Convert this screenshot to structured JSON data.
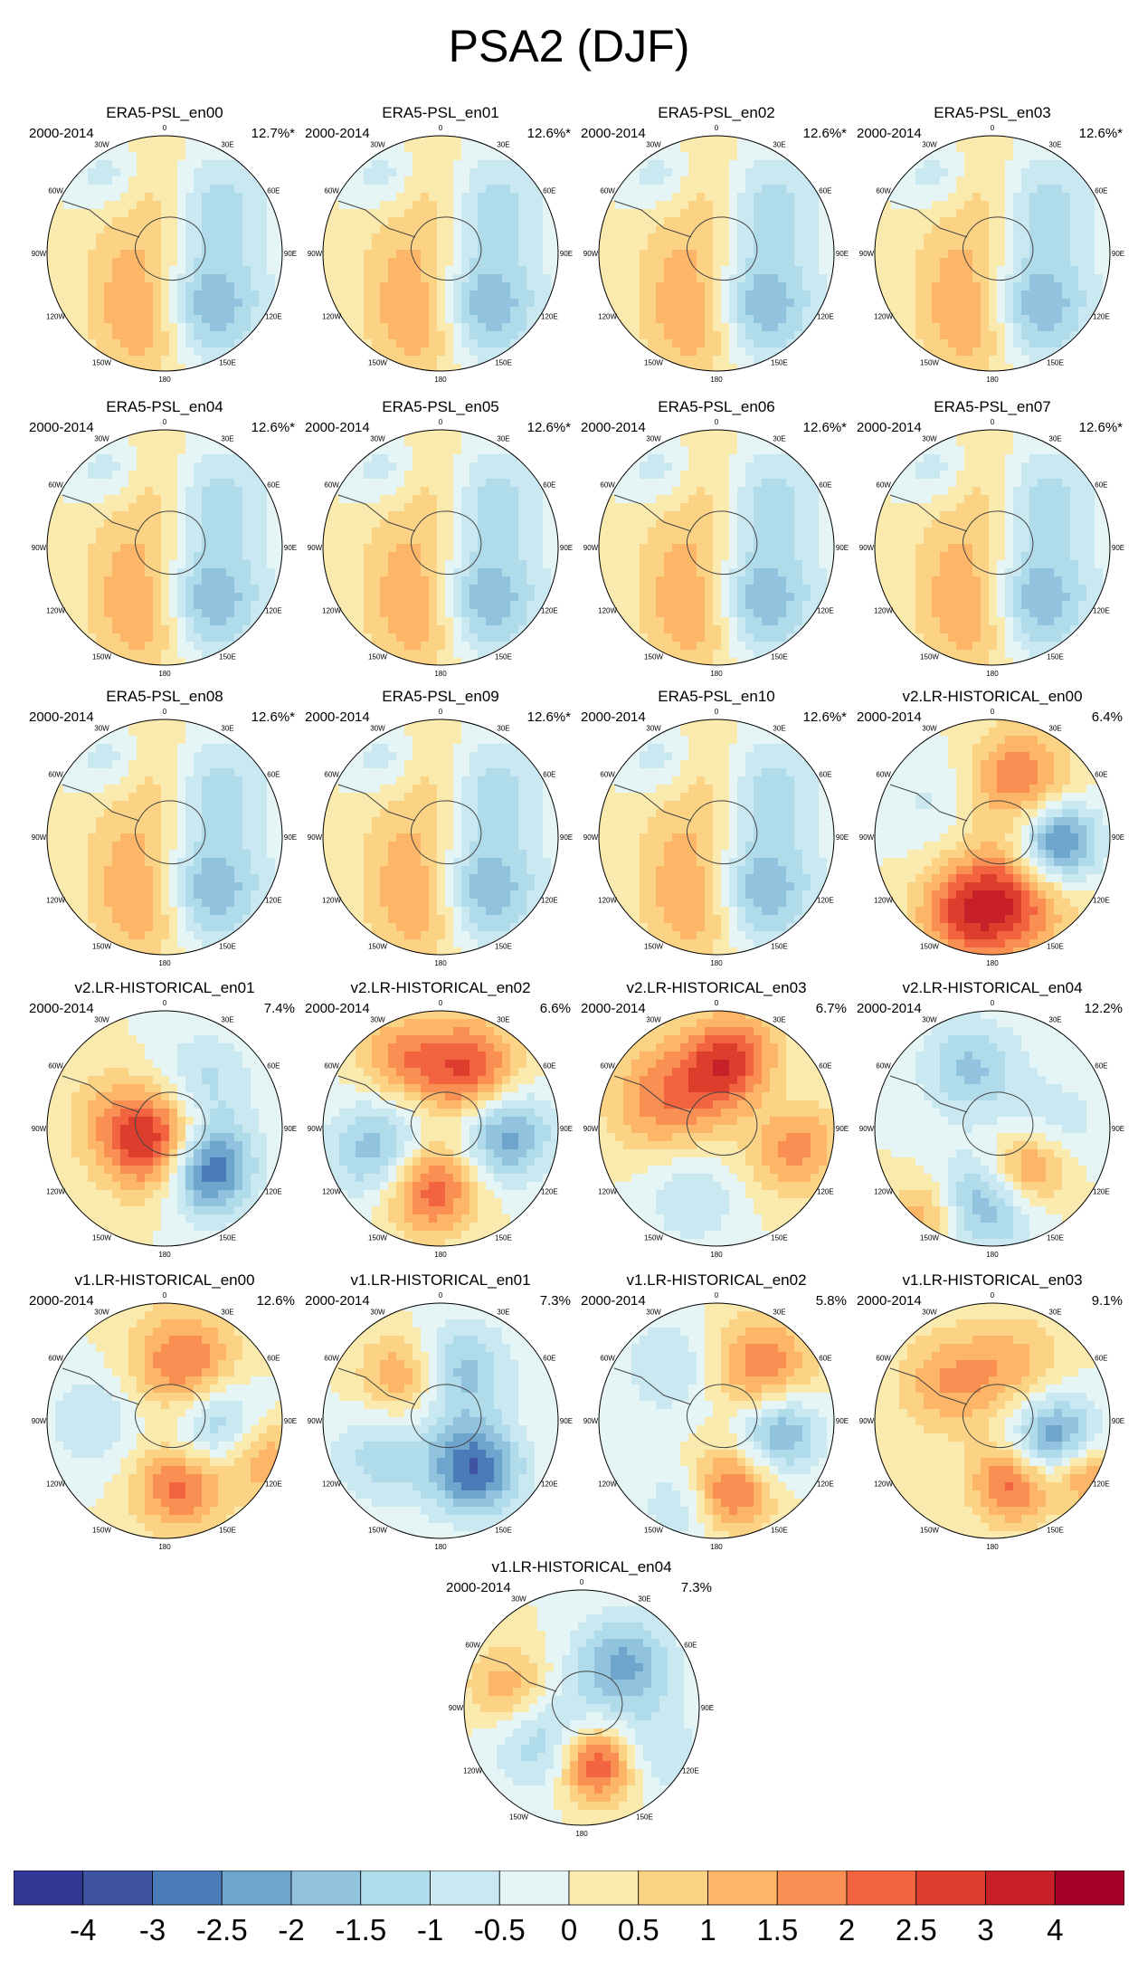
{
  "title": "PSA2 (DJF)",
  "period": "2000-2014",
  "lon_labels": [
    "0",
    "30E",
    "60E",
    "90E",
    "120E",
    "150E",
    "180",
    "150W",
    "120W",
    "90W",
    "60W",
    "30W"
  ],
  "panels": [
    {
      "name": "ERA5-PSL_en00",
      "pct": "12.7%*",
      "style": "era5"
    },
    {
      "name": "ERA5-PSL_en01",
      "pct": "12.6%*",
      "style": "era5"
    },
    {
      "name": "ERA5-PSL_en02",
      "pct": "12.6%*",
      "style": "era5"
    },
    {
      "name": "ERA5-PSL_en03",
      "pct": "12.6%*",
      "style": "era5"
    },
    {
      "name": "ERA5-PSL_en04",
      "pct": "12.6%*",
      "style": "era5"
    },
    {
      "name": "ERA5-PSL_en05",
      "pct": "12.6%*",
      "style": "era5"
    },
    {
      "name": "ERA5-PSL_en06",
      "pct": "12.6%*",
      "style": "era5"
    },
    {
      "name": "ERA5-PSL_en07",
      "pct": "12.6%*",
      "style": "era5"
    },
    {
      "name": "ERA5-PSL_en08",
      "pct": "12.6%*",
      "style": "era5"
    },
    {
      "name": "ERA5-PSL_en09",
      "pct": "12.6%*",
      "style": "era5"
    },
    {
      "name": "ERA5-PSL_en10",
      "pct": "12.6%*",
      "style": "era5"
    },
    {
      "name": "v2.LR-HISTORICAL_en00",
      "pct": "6.4%",
      "style": "v2en00"
    },
    {
      "name": "v2.LR-HISTORICAL_en01",
      "pct": "7.4%",
      "style": "v2en01"
    },
    {
      "name": "v2.LR-HISTORICAL_en02",
      "pct": "6.6%",
      "style": "v2en02"
    },
    {
      "name": "v2.LR-HISTORICAL_en03",
      "pct": "6.7%",
      "style": "v2en03"
    },
    {
      "name": "v2.LR-HISTORICAL_en04",
      "pct": "12.2%",
      "style": "v2en04"
    },
    {
      "name": "v1.LR-HISTORICAL_en00",
      "pct": "12.6%",
      "style": "v1en00"
    },
    {
      "name": "v1.LR-HISTORICAL_en01",
      "pct": "7.3%",
      "style": "v1en01"
    },
    {
      "name": "v1.LR-HISTORICAL_en02",
      "pct": "5.8%",
      "style": "v1en02"
    },
    {
      "name": "v1.LR-HISTORICAL_en03",
      "pct": "9.1%",
      "style": "v1en03"
    },
    {
      "name": "v1.LR-HISTORICAL_en04",
      "pct": "7.3%",
      "style": "v1en04"
    }
  ],
  "colorbar": {
    "colors": [
      "#313695",
      "#3e54a3",
      "#4a7ab7",
      "#6da5cc",
      "#91c3de",
      "#b0dbea",
      "#c9e8f2",
      "#e5f4f4",
      "#faeaae",
      "#fcd384",
      "#fdb567",
      "#f98f52",
      "#f1643f",
      "#dd3d2d",
      "#c72029",
      "#a50026"
    ],
    "labels": [
      "-4",
      "-3",
      "-2.5",
      "-2",
      "-1.5",
      "-1",
      "-0.5",
      "0",
      "0.5",
      "1",
      "1.5",
      "2",
      "2.5",
      "3",
      "4"
    ]
  },
  "anomaly_patterns": {
    "era5": [
      [
        -2.6,
        145,
        0.52,
        0.35
      ],
      [
        1.6,
        210,
        0.25,
        0.35
      ],
      [
        1.4,
        190,
        0.7,
        0.3
      ],
      [
        -1.4,
        45,
        0.6,
        0.3
      ],
      [
        0.8,
        350,
        0.55,
        0.3
      ],
      [
        -1.0,
        325,
        0.8,
        0.2
      ]
    ],
    "v2en00": [
      [
        -3.0,
        95,
        0.55,
        0.25
      ],
      [
        2.0,
        25,
        0.55,
        0.3
      ],
      [
        2.4,
        165,
        0.55,
        0.35
      ],
      [
        1.8,
        200,
        0.7,
        0.3
      ],
      [
        -0.6,
        300,
        0.6,
        0.3
      ]
    ],
    "v2en01": [
      [
        -4.2,
        135,
        0.45,
        0.28
      ],
      [
        2.0,
        165,
        0.2,
        0.3
      ],
      [
        1.6,
        200,
        0.15,
        0.3
      ],
      [
        -1.2,
        40,
        0.5,
        0.3
      ],
      [
        1.2,
        280,
        0.4,
        0.3
      ]
    ],
    "v2en02": [
      [
        2.6,
        25,
        0.55,
        0.3
      ],
      [
        -2.4,
        95,
        0.55,
        0.28
      ],
      [
        2.6,
        190,
        0.5,
        0.28
      ],
      [
        -2.0,
        250,
        0.55,
        0.3
      ],
      [
        1.6,
        330,
        0.7,
        0.25
      ]
    ],
    "v2en03": [
      [
        3.0,
        15,
        0.55,
        0.3
      ],
      [
        1.8,
        300,
        0.5,
        0.35
      ],
      [
        2.0,
        100,
        0.65,
        0.3
      ],
      [
        -1.2,
        60,
        0.5,
        0.3
      ],
      [
        -1.0,
        200,
        0.6,
        0.3
      ]
    ],
    "v2en04": [
      [
        2.6,
        140,
        0.45,
        0.25
      ],
      [
        -2.2,
        180,
        0.6,
        0.3
      ],
      [
        -1.6,
        340,
        0.55,
        0.3
      ],
      [
        1.4,
        220,
        0.95,
        0.2
      ],
      [
        -1.0,
        90,
        0.5,
        0.3
      ]
    ],
    "v1en00": [
      [
        2.2,
        20,
        0.5,
        0.32
      ],
      [
        -2.2,
        100,
        0.45,
        0.3
      ],
      [
        2.4,
        165,
        0.55,
        0.28
      ],
      [
        1.8,
        110,
        0.85,
        0.25
      ],
      [
        -1.0,
        270,
        0.6,
        0.3
      ]
    ],
    "v1en01": [
      [
        -3.0,
        145,
        0.5,
        0.28
      ],
      [
        -1.8,
        20,
        0.45,
        0.3
      ],
      [
        1.8,
        320,
        0.5,
        0.25
      ],
      [
        -1.2,
        240,
        0.6,
        0.3
      ]
    ],
    "v1en02": [
      [
        2.0,
        40,
        0.6,
        0.3
      ],
      [
        -2.2,
        100,
        0.55,
        0.25
      ],
      [
        2.4,
        170,
        0.6,
        0.25
      ],
      [
        -1.2,
        200,
        0.75,
        0.25
      ],
      [
        -1.0,
        320,
        0.6,
        0.3
      ]
    ],
    "v1en03": [
      [
        -2.8,
        110,
        0.55,
        0.28
      ],
      [
        2.6,
        160,
        0.55,
        0.25
      ],
      [
        2.2,
        120,
        0.9,
        0.2
      ],
      [
        1.4,
        310,
        0.5,
        0.3
      ],
      [
        1.2,
        20,
        0.5,
        0.3
      ]
    ],
    "v1en04": [
      [
        -2.2,
        45,
        0.5,
        0.3
      ],
      [
        2.8,
        165,
        0.5,
        0.22
      ],
      [
        -1.4,
        230,
        0.45,
        0.3
      ],
      [
        1.4,
        285,
        0.65,
        0.25
      ],
      [
        -1.0,
        120,
        0.75,
        0.25
      ]
    ]
  }
}
